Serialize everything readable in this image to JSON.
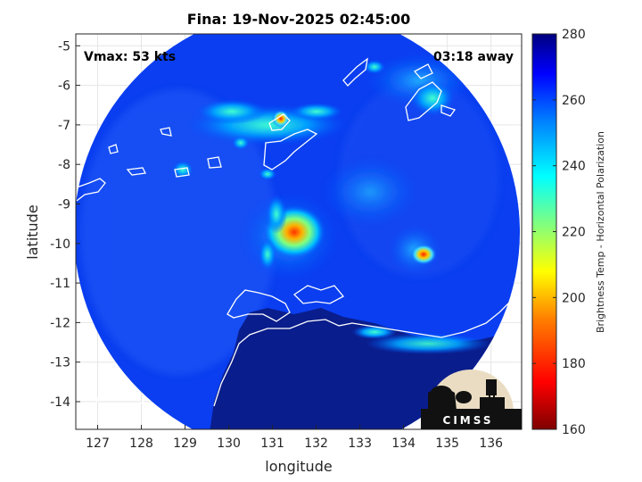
{
  "chart_data": {
    "type": "heatmap",
    "title": "Fina: 19-Nov-2025 02:45:00",
    "xlabel": "longitude",
    "ylabel": "latitude",
    "xlim": [
      126.5,
      136.7
    ],
    "ylim": [
      -14.7,
      -4.7
    ],
    "x_ticks": [
      "127",
      "128",
      "129",
      "130",
      "131",
      "132",
      "133",
      "134",
      "135",
      "136"
    ],
    "y_ticks": [
      "-5",
      "-6",
      "-7",
      "-8",
      "-9",
      "-10",
      "-11",
      "-12",
      "-13",
      "-14"
    ],
    "grid": true,
    "annotations": {
      "vmax": "Vmax: 53 kts",
      "time_away": "03:18 away"
    },
    "colorbar": {
      "label": "Brightness Temp - Horizontal Polarization",
      "min": 160,
      "max": 280,
      "ticks": [
        "280",
        "260",
        "240",
        "220",
        "200",
        "180",
        "160"
      ],
      "colormap": "jet"
    },
    "storm_center": {
      "lon": 131.5,
      "lat": -9.8,
      "min_temp": 190
    },
    "logo_text": "CIMSS"
  }
}
